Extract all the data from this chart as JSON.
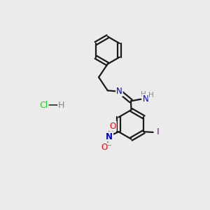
{
  "background_color": "#ebebeb",
  "atom_colors": {
    "C": "#000000",
    "N": "#0000cc",
    "O": "#ff0000",
    "I": "#9900aa",
    "H": "#888888",
    "Cl": "#22cc22",
    "plus": "#0000cc"
  },
  "bond_color": "#1a1a1a",
  "bond_width": 1.6,
  "dbo": 0.013,
  "fontsize": 9
}
